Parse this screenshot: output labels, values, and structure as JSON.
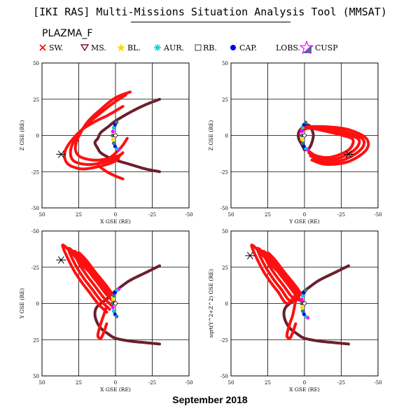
{
  "title": "[IKI RAS] Multi-Missions Situation Analysis Tool (MMSAT)",
  "mission": "PLAZMA_F",
  "footer": "September 2018",
  "legend": [
    {
      "label": "SW.",
      "icon": "red-x-marker",
      "color": "#ff0000"
    },
    {
      "label": "MS.",
      "icon": "triangle-down-marker",
      "color": "#7a1030"
    },
    {
      "label": "BL.",
      "icon": "yellow-star-marker",
      "color": "#ffd700"
    },
    {
      "label": "AUR.",
      "icon": "cyan-asterisk-marker",
      "color": "#00d0d0"
    },
    {
      "label": "RB.",
      "icon": "square-marker",
      "color": "#606060"
    },
    {
      "label": "CAP.",
      "icon": "blue-dot-marker",
      "color": "#0000ff"
    },
    {
      "label": "LOBS.",
      "icon": "teal-triangle-marker",
      "color": "#2f7f7f"
    },
    {
      "label": "CUSP",
      "icon": "magenta-star-marker",
      "color": "#ff00ff"
    }
  ],
  "chart_data": [
    {
      "type": "scatter",
      "title": "",
      "xlabel": "X GSE (RE)",
      "ylabel": "Z GSE (RE)",
      "xlim": [
        50,
        -50
      ],
      "ylim": [
        -50,
        50
      ],
      "xticks": [
        "50",
        "25",
        "0",
        "-25",
        "-50"
      ],
      "yticks": [
        "-50",
        "-25",
        "0",
        "25",
        "50"
      ],
      "grid": true,
      "bow_shock": {
        "color": "#6b1f2e",
        "x": [
          -30,
          -20,
          -10,
          0,
          5,
          10,
          12,
          14,
          12,
          10,
          5,
          0,
          -10,
          -20,
          -30
        ],
        "y": [
          25,
          21,
          16,
          10,
          6,
          2,
          -2,
          -5,
          -9,
          -12,
          -15,
          -17,
          -20,
          -23,
          -25
        ]
      },
      "orbit_segments": [
        {
          "x": [
            -10,
            0,
            10,
            20,
            27,
            25,
            15,
            5,
            -2,
            -5
          ],
          "y": [
            30,
            26,
            18,
            8,
            -6,
            -14,
            -17,
            -16,
            -14,
            -12
          ]
        },
        {
          "x": [
            -7,
            2,
            12,
            22,
            30,
            29,
            20,
            10,
            0,
            -3
          ],
          "y": [
            28,
            22,
            14,
            5,
            -8,
            -17,
            -20,
            -19,
            -16,
            -14
          ]
        },
        {
          "x": [
            -5,
            5,
            15,
            25,
            34,
            33,
            24,
            14,
            3,
            -2
          ],
          "y": [
            20,
            14,
            9,
            2,
            -10,
            -19,
            -23,
            -22,
            -19,
            -16
          ]
        },
        {
          "x": [
            -8,
            -4,
            2,
            8,
            12,
            6,
            0,
            -5
          ],
          "y": [
            -2,
            -8,
            -14,
            -18,
            -20,
            -25,
            -28,
            -30
          ]
        }
      ],
      "spacecraft": {
        "x": 37,
        "y": -13
      },
      "earth": {
        "x": 0,
        "y": 0
      }
    },
    {
      "type": "scatter",
      "title": "",
      "xlabel": "Y GSE (RE)",
      "ylabel": "Z GSE (RE)",
      "xlim": [
        50,
        -50
      ],
      "ylim": [
        -50,
        50
      ],
      "xticks": [
        "50",
        "25",
        "0",
        "-25",
        "-50"
      ],
      "yticks": [
        "-50",
        "-25",
        "0",
        "25",
        "50"
      ],
      "grid": true,
      "orbit_segments": [
        {
          "x": [
            -5,
            -15,
            -30,
            -42,
            -42,
            -30,
            -15,
            -3,
            1
          ],
          "y": [
            -17,
            -20,
            -18,
            -10,
            -2,
            4,
            6,
            6,
            5
          ]
        },
        {
          "x": [
            -4,
            -12,
            -26,
            -38,
            -40,
            -30,
            -16,
            -4,
            2
          ],
          "y": [
            -14,
            -18,
            -17,
            -10,
            -3,
            2,
            5,
            6,
            5
          ]
        },
        {
          "x": [
            -3,
            -10,
            -22,
            -34,
            -37,
            -28,
            -15,
            -4,
            2
          ],
          "y": [
            -12,
            -16,
            -16,
            -10,
            -3,
            1,
            4,
            6,
            4
          ]
        },
        {
          "x": [
            -2,
            -8,
            -18,
            -30,
            -33,
            -26,
            -14,
            -3,
            2
          ],
          "y": [
            -10,
            -14,
            -15,
            -10,
            -3,
            0,
            3,
            5,
            3
          ]
        }
      ],
      "ring": {
        "color": "#6b1f2e",
        "x": [
          0,
          2,
          4,
          4,
          2,
          0,
          -3,
          -5,
          -6,
          -5,
          -3,
          0
        ],
        "y": [
          -10,
          -6,
          -2,
          2,
          5,
          7,
          7,
          4,
          0,
          -5,
          -9,
          -10
        ]
      },
      "spacecraft": {
        "x": -30,
        "y": -13
      },
      "earth": {
        "x": 0,
        "y": 0
      }
    },
    {
      "type": "scatter",
      "title": "",
      "xlabel": "X GSE (RE)",
      "ylabel": "Y GSE (RE)",
      "xlim": [
        50,
        -50
      ],
      "ylim": [
        50,
        -50
      ],
      "xticks": [
        "50",
        "25",
        "0",
        "-25",
        "-50"
      ],
      "yticks": [
        "-50",
        "-25",
        "0",
        "25",
        "50"
      ],
      "grid": true,
      "bow_shock": {
        "color": "#6b1f2e",
        "x": [
          -30,
          -20,
          -10,
          -3,
          2,
          6,
          10,
          13,
          14,
          13,
          10,
          5,
          0,
          -10,
          -20,
          -30
        ],
        "y": [
          -26,
          -21,
          -16,
          -11,
          -7,
          -3,
          0,
          3,
          7,
          12,
          17,
          21,
          24,
          26,
          27,
          28
        ]
      },
      "orbit_segments": [
        {
          "x": [
            0,
            6,
            12,
            18,
            22,
            25,
            20,
            14,
            6,
            2
          ],
          "y": [
            0,
            -6,
            -14,
            -22,
            -30,
            -35,
            -30,
            -22,
            -12,
            -6
          ]
        },
        {
          "x": [
            2,
            8,
            14,
            20,
            25,
            28,
            23,
            16,
            8,
            3
          ],
          "y": [
            2,
            -4,
            -12,
            -20,
            -28,
            -36,
            -31,
            -22,
            -12,
            -6
          ]
        },
        {
          "x": [
            4,
            10,
            16,
            22,
            28,
            32,
            26,
            18,
            10,
            4
          ],
          "y": [
            4,
            -2,
            -10,
            -18,
            -28,
            -38,
            -33,
            -24,
            -14,
            -6
          ]
        },
        {
          "x": [
            6,
            12,
            18,
            24,
            30,
            36,
            30,
            22,
            12,
            6
          ],
          "y": [
            6,
            0,
            -8,
            -16,
            -26,
            -40,
            -35,
            -26,
            -16,
            -8
          ]
        },
        {
          "x": [
            6,
            8,
            10,
            12,
            10,
            8,
            6
          ],
          "y": [
            2,
            8,
            14,
            22,
            24,
            20,
            14
          ]
        }
      ],
      "spacecraft": {
        "x": 37,
        "y": -30
      },
      "earth": {
        "x": 0,
        "y": 0
      }
    },
    {
      "type": "scatter",
      "title": "",
      "xlabel": "X GSE (RE)",
      "ylabel": "sqrt(Y^2+Z^2) GSE (RE)",
      "xlim": [
        50,
        -50
      ],
      "ylim": [
        -50,
        50
      ],
      "xticks": [
        "50",
        "25",
        "0",
        "-25",
        "-50"
      ],
      "yticks": [
        "-50",
        "-25",
        "0",
        "25",
        "50"
      ],
      "grid": true,
      "bow_shock": {
        "color": "#6b1f2e",
        "x": [
          -30,
          -20,
          -10,
          -3,
          2,
          6,
          10,
          13,
          14,
          13,
          10,
          5,
          0,
          -10,
          -20,
          -30
        ],
        "y": [
          26,
          21,
          16,
          11,
          7,
          3,
          0,
          -3,
          -7,
          -12,
          -17,
          -21,
          -24,
          -26,
          -27,
          -28
        ]
      },
      "orbit_segments": [
        {
          "x": [
            0,
            6,
            12,
            18,
            22,
            25,
            20,
            14,
            6,
            2
          ],
          "y": [
            0,
            6,
            14,
            22,
            30,
            35,
            30,
            22,
            12,
            6
          ]
        },
        {
          "x": [
            2,
            8,
            14,
            20,
            25,
            28,
            23,
            16,
            8,
            3
          ],
          "y": [
            2,
            4,
            12,
            20,
            28,
            36,
            31,
            22,
            12,
            6
          ]
        },
        {
          "x": [
            4,
            10,
            16,
            22,
            28,
            32,
            26,
            18,
            10,
            4
          ],
          "y": [
            4,
            2,
            10,
            18,
            28,
            38,
            33,
            24,
            14,
            6
          ]
        },
        {
          "x": [
            6,
            12,
            18,
            24,
            30,
            36,
            30,
            22,
            12,
            6
          ],
          "y": [
            6,
            0,
            8,
            16,
            26,
            40,
            35,
            26,
            16,
            8
          ]
        },
        {
          "x": [
            6,
            8,
            10,
            12,
            10,
            8,
            6
          ],
          "y": [
            2,
            -8,
            -14,
            -22,
            -24,
            -20,
            -14
          ]
        }
      ],
      "spacecraft": {
        "x": 37,
        "y": 33
      },
      "earth": {
        "x": 0,
        "y": 0
      }
    }
  ]
}
